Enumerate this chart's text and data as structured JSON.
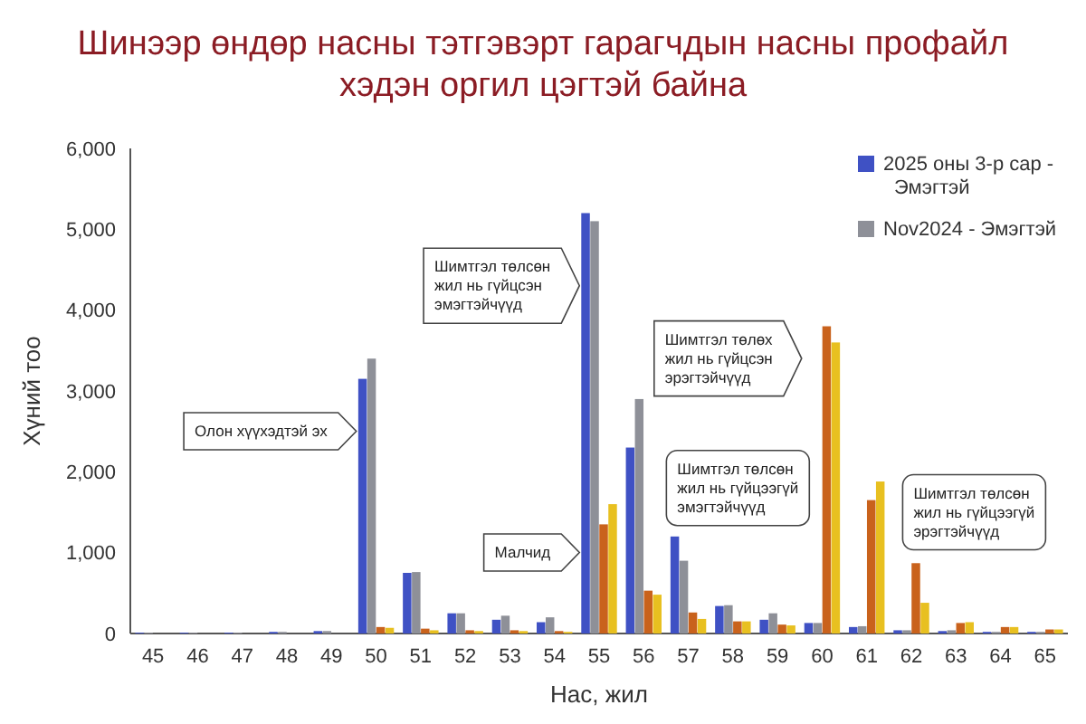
{
  "chart_data": {
    "type": "bar",
    "title": "Шинээр өндөр насны тэтгэвэрт гарагчдын насны профайл хэдэн оргил цэгтэй байна",
    "xlabel": "Нас, жил",
    "ylabel": "Хүний тоо",
    "categories": [
      "45",
      "46",
      "47",
      "48",
      "49",
      "50",
      "51",
      "52",
      "53",
      "54",
      "55",
      "56",
      "57",
      "58",
      "59",
      "60",
      "61",
      "62",
      "63",
      "64",
      "65"
    ],
    "series": [
      {
        "name": "2025 оны 3-р сар - Эмэгтэй",
        "color": "#3f51c4",
        "values": [
          10,
          10,
          10,
          20,
          30,
          3150,
          750,
          250,
          170,
          140,
          5200,
          2300,
          1200,
          340,
          170,
          130,
          80,
          40,
          30,
          20,
          20
        ]
      },
      {
        "name": "Nov2024 - Эмэгтэй",
        "color": "#8e9098",
        "values": [
          10,
          10,
          10,
          20,
          30,
          3400,
          760,
          250,
          220,
          200,
          5100,
          2900,
          900,
          350,
          250,
          130,
          90,
          40,
          40,
          20,
          20
        ]
      },
      {
        "color": "#c9621c",
        "values": [
          0,
          0,
          0,
          0,
          0,
          80,
          60,
          40,
          40,
          30,
          1350,
          530,
          260,
          150,
          110,
          3800,
          1650,
          870,
          130,
          80,
          50
        ]
      },
      {
        "color": "#e8c020",
        "values": [
          0,
          0,
          0,
          0,
          0,
          70,
          40,
          30,
          30,
          20,
          1600,
          480,
          180,
          150,
          100,
          3600,
          1880,
          380,
          140,
          80,
          50
        ]
      }
    ],
    "ylim": [
      0,
      6000
    ],
    "yticks": [
      0,
      {
        "value": 1000,
        "label": "1,000"
      },
      {
        "value": 2000,
        "label": "2,000"
      },
      {
        "value": 3000,
        "label": "3,000"
      },
      {
        "value": 4000,
        "label": "4,000"
      },
      {
        "value": 5000,
        "label": "5,000"
      },
      {
        "value": 6000,
        "label": "6,000"
      }
    ],
    "legend": "top right",
    "annotations": [
      "Олон хүүхэдтэй эх",
      "Шимтгэл төлсөн жил нь гүйцсэн эмэгтэйчүүд",
      "Малчид",
      "Шимтгэл төлсөн жил нь гүйцээгүй эмэгтэйчүүд",
      "Шимтгэл төлөх жил нь гүйцсэн эрэгтэйчүүд",
      "Шимтгэл төлсөн жил нь гүйцээгүй эрэгтэйчүүд"
    ]
  }
}
